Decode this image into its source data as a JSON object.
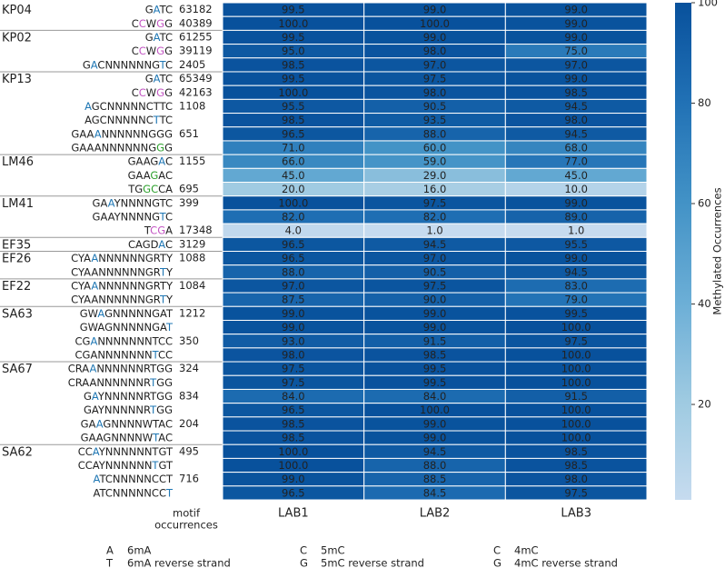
{
  "chart_data": {
    "type": "heatmap",
    "columns": [
      "LAB1",
      "LAB2",
      "LAB3"
    ],
    "occurrences_label": [
      "motif",
      "occurrences"
    ],
    "groups": [
      {
        "name": "KP04",
        "rows": [
          {
            "motif": "GATC",
            "highlight": [
              {
                "pos": 1,
                "color": "#1f77b4"
              }
            ],
            "occurrences": 63182,
            "values": [
              99.5,
              99,
              99
            ],
            "value_labels": [
              "99.5",
              "99.0",
              "99.0"
            ]
          },
          {
            "motif": "CCWGG",
            "highlight": [
              {
                "pos": 1,
                "color": "#c355c3"
              },
              {
                "pos": 3,
                "color": "#c355c3"
              }
            ],
            "occurrences": 40389,
            "values": [
              100,
              100,
              99
            ],
            "value_labels": [
              "100.0",
              "100.0",
              "99.0"
            ]
          }
        ]
      },
      {
        "name": "KP02",
        "rows": [
          {
            "motif": "GATC",
            "highlight": [
              {
                "pos": 1,
                "color": "#1f77b4"
              }
            ],
            "occurrences": 61255,
            "values": [
              99.5,
              99,
              99
            ],
            "value_labels": [
              "99.5",
              "99.0",
              "99.0"
            ]
          },
          {
            "motif": "CCWGG",
            "highlight": [
              {
                "pos": 1,
                "color": "#c355c3"
              },
              {
                "pos": 3,
                "color": "#c355c3"
              }
            ],
            "occurrences": 39119,
            "values": [
              95,
              98,
              75
            ],
            "value_labels": [
              "95.0",
              "98.0",
              "75.0"
            ]
          },
          {
            "motif": "GACNNNNNNGTC",
            "highlight": [
              {
                "pos": 1,
                "color": "#1f77b4"
              },
              {
                "pos": 10,
                "color": "#1f77b4"
              }
            ],
            "occurrences": 2405,
            "values": [
              98.5,
              97,
              97
            ],
            "value_labels": [
              "98.5",
              "97.0",
              "97.0"
            ]
          }
        ]
      },
      {
        "name": "KP13",
        "rows": [
          {
            "motif": "GATC",
            "highlight": [
              {
                "pos": 1,
                "color": "#1f77b4"
              }
            ],
            "occurrences": 65349,
            "values": [
              99.5,
              97.5,
              99
            ],
            "value_labels": [
              "99.5",
              "97.5",
              "99.0"
            ]
          },
          {
            "motif": "CCWGG",
            "highlight": [
              {
                "pos": 1,
                "color": "#c355c3"
              },
              {
                "pos": 3,
                "color": "#c355c3"
              }
            ],
            "occurrences": 42163,
            "values": [
              100,
              98,
              98.5
            ],
            "value_labels": [
              "100.0",
              "98.0",
              "98.5"
            ]
          },
          {
            "motif": "AGCNNNNNCTTC",
            "highlight": [
              {
                "pos": 0,
                "color": "#1f77b4"
              }
            ],
            "occurrences": 1108,
            "values": [
              95.5,
              90.5,
              94.5
            ],
            "value_labels": [
              "95.5",
              "90.5",
              "94.5"
            ]
          },
          {
            "motif": "AGCNNNNNCTTC",
            "highlight": [
              {
                "pos": 9,
                "color": "#1f77b4"
              }
            ],
            "values": [
              98.5,
              93.5,
              98
            ],
            "value_labels": [
              "98.5",
              "93.5",
              "98.0"
            ]
          },
          {
            "motif": "GAAANNNNNNGGG",
            "highlight": [
              {
                "pos": 3,
                "color": "#1f77b4"
              }
            ],
            "occurrences": 651,
            "values": [
              96.5,
              88,
              94.5
            ],
            "value_labels": [
              "96.5",
              "88.0",
              "94.5"
            ]
          },
          {
            "motif": "GAAANNNNNNGGG",
            "highlight": [
              {
                "pos": 11,
                "color": "#2ca02c"
              }
            ],
            "values": [
              71,
              60,
              68
            ],
            "value_labels": [
              "71.0",
              "60.0",
              "68.0"
            ]
          }
        ]
      },
      {
        "name": "LM46",
        "rows": [
          {
            "motif": "GAAGAC",
            "highlight": [
              {
                "pos": 4,
                "color": "#1f77b4"
              }
            ],
            "occurrences": 1155,
            "values": [
              66,
              59,
              77
            ],
            "value_labels": [
              "66.0",
              "59.0",
              "77.0"
            ]
          },
          {
            "motif": "GAAGAC",
            "highlight": [
              {
                "pos": 3,
                "color": "#2ca02c"
              }
            ],
            "values": [
              45,
              29,
              45
            ],
            "value_labels": [
              "45.0",
              "29.0",
              "45.0"
            ]
          },
          {
            "motif": "TGGCCA",
            "highlight": [
              {
                "pos": 2,
                "color": "#2ca02c"
              },
              {
                "pos": 3,
                "color": "#2ca02c"
              }
            ],
            "occurrences": 695,
            "values": [
              20,
              16,
              10
            ],
            "value_labels": [
              "20.0",
              "16.0",
              "10.0"
            ]
          }
        ]
      },
      {
        "name": "LM41",
        "rows": [
          {
            "motif": "GAAYNNNNGTC",
            "highlight": [
              {
                "pos": 2,
                "color": "#1f77b4"
              }
            ],
            "occurrences": 399,
            "values": [
              100,
              97.5,
              99
            ],
            "value_labels": [
              "100.0",
              "97.5",
              "99.0"
            ]
          },
          {
            "motif": "GAAYNNNNGTC",
            "highlight": [
              {
                "pos": 9,
                "color": "#1f77b4"
              }
            ],
            "values": [
              82,
              82,
              89
            ],
            "value_labels": [
              "82.0",
              "82.0",
              "89.0"
            ]
          },
          {
            "motif": "TCGA",
            "highlight": [
              {
                "pos": 1,
                "color": "#c355c3"
              },
              {
                "pos": 2,
                "color": "#c355c3"
              }
            ],
            "occurrences": 17348,
            "values": [
              4,
              1,
              1
            ],
            "value_labels": [
              "4.0",
              "1.0",
              "1.0"
            ]
          }
        ]
      },
      {
        "name": "EF35",
        "rows": [
          {
            "motif": "CAGDAC",
            "highlight": [
              {
                "pos": 4,
                "color": "#1f77b4"
              }
            ],
            "occurrences": 3129,
            "values": [
              96.5,
              94.5,
              95.5
            ],
            "value_labels": [
              "96.5",
              "94.5",
              "95.5"
            ]
          }
        ]
      },
      {
        "name": "EF26",
        "rows": [
          {
            "motif": "CYAANNNNNNGRTY",
            "highlight": [
              {
                "pos": 3,
                "color": "#1f77b4"
              }
            ],
            "occurrences": 1088,
            "values": [
              96.5,
              97,
              99
            ],
            "value_labels": [
              "96.5",
              "97.0",
              "99.0"
            ]
          },
          {
            "motif": "CYAANNNNNNGRTY",
            "highlight": [
              {
                "pos": 12,
                "color": "#1f77b4"
              }
            ],
            "values": [
              88,
              90.5,
              94.5
            ],
            "value_labels": [
              "88.0",
              "90.5",
              "94.5"
            ]
          }
        ]
      },
      {
        "name": "EF22",
        "rows": [
          {
            "motif": "CYAANNNNNNGRTY",
            "highlight": [
              {
                "pos": 3,
                "color": "#1f77b4"
              }
            ],
            "occurrences": 1084,
            "values": [
              97,
              97.5,
              83
            ],
            "value_labels": [
              "97.0",
              "97.5",
              "83.0"
            ]
          },
          {
            "motif": "CYAANNNNNNGRTY",
            "highlight": [
              {
                "pos": 12,
                "color": "#1f77b4"
              }
            ],
            "values": [
              87.5,
              90,
              79
            ],
            "value_labels": [
              "87.5",
              "90.0",
              "79.0"
            ]
          }
        ]
      },
      {
        "name": "SA63",
        "rows": [
          {
            "motif": "GWAGNNNNNGAT",
            "highlight": [
              {
                "pos": 2,
                "color": "#1f77b4"
              }
            ],
            "occurrences": 1212,
            "values": [
              99,
              99,
              99.5
            ],
            "value_labels": [
              "99.0",
              "99.0",
              "99.5"
            ]
          },
          {
            "motif": "GWAGNNNNNGAT",
            "highlight": [
              {
                "pos": 11,
                "color": "#1f77b4"
              }
            ],
            "values": [
              99,
              99,
              100
            ],
            "value_labels": [
              "99.0",
              "99.0",
              "100.0"
            ]
          },
          {
            "motif": "CGANNNNNNNTCC",
            "highlight": [
              {
                "pos": 2,
                "color": "#1f77b4"
              }
            ],
            "occurrences": 350,
            "values": [
              93,
              91.5,
              97.5
            ],
            "value_labels": [
              "93.0",
              "91.5",
              "97.5"
            ]
          },
          {
            "motif": "CGANNNNNNNTCC",
            "highlight": [
              {
                "pos": 10,
                "color": "#1f77b4"
              }
            ],
            "values": [
              98,
              98.5,
              100
            ],
            "value_labels": [
              "98.0",
              "98.5",
              "100.0"
            ]
          }
        ]
      },
      {
        "name": "SA67",
        "rows": [
          {
            "motif": "CRAANNNNNNRTGG",
            "highlight": [
              {
                "pos": 3,
                "color": "#1f77b4"
              }
            ],
            "occurrences": 324,
            "values": [
              97.5,
              99.5,
              100
            ],
            "value_labels": [
              "97.5",
              "99.5",
              "100.0"
            ]
          },
          {
            "motif": "CRAANNNNNNRTGG",
            "highlight": [
              {
                "pos": 11,
                "color": "#1f77b4"
              }
            ],
            "values": [
              97.5,
              99.5,
              100
            ],
            "value_labels": [
              "97.5",
              "99.5",
              "100.0"
            ]
          },
          {
            "motif": "GAYNNNNNRTGG",
            "highlight": [
              {
                "pos": 1,
                "color": "#1f77b4"
              }
            ],
            "occurrences": 834,
            "values": [
              84,
              84,
              91.5
            ],
            "value_labels": [
              "84.0",
              "84.0",
              "91.5"
            ]
          },
          {
            "motif": "GAYNNNNNRTGG",
            "highlight": [
              {
                "pos": 9,
                "color": "#1f77b4"
              }
            ],
            "values": [
              96.5,
              100,
              100
            ],
            "value_labels": [
              "96.5",
              "100.0",
              "100.0"
            ]
          },
          {
            "motif": "GAAGNNNNWTAC",
            "highlight": [
              {
                "pos": 2,
                "color": "#1f77b4"
              }
            ],
            "occurrences": 204,
            "values": [
              98.5,
              99,
              100
            ],
            "value_labels": [
              "98.5",
              "99.0",
              "100.0"
            ]
          },
          {
            "motif": "GAAGNNNNWTAC",
            "highlight": [
              {
                "pos": 9,
                "color": "#1f77b4"
              }
            ],
            "values": [
              98.5,
              99,
              100
            ],
            "value_labels": [
              "98.5",
              "99.0",
              "100.0"
            ]
          }
        ]
      },
      {
        "name": "SA62",
        "rows": [
          {
            "motif": "CCAYNNNNNNTGT",
            "highlight": [
              {
                "pos": 2,
                "color": "#1f77b4"
              }
            ],
            "occurrences": 495,
            "values": [
              100,
              94.5,
              98.5
            ],
            "value_labels": [
              "100.0",
              "94.5",
              "98.5"
            ]
          },
          {
            "motif": "CCAYNNNNNNTGT",
            "highlight": [
              {
                "pos": 10,
                "color": "#1f77b4"
              }
            ],
            "values": [
              100,
              88,
              98.5
            ],
            "value_labels": [
              "100.0",
              "88.0",
              "98.5"
            ]
          },
          {
            "motif": "ATCNNNNNCCT",
            "highlight": [
              {
                "pos": 0,
                "color": "#1f77b4"
              }
            ],
            "occurrences": 716,
            "values": [
              99,
              88.5,
              98
            ],
            "value_labels": [
              "99.0",
              "88.5",
              "98.0"
            ]
          },
          {
            "motif": "ATCNNNNNCCT",
            "highlight": [
              {
                "pos": 10,
                "color": "#1f77b4"
              }
            ],
            "values": [
              96.5,
              84.5,
              97.5
            ],
            "value_labels": [
              "96.5",
              "84.5",
              "97.5"
            ]
          }
        ]
      }
    ],
    "colorbar": {
      "label": "Methylated Occurrences",
      "lim": [
        1,
        100
      ],
      "ticks": [
        20,
        40,
        60,
        80,
        100
      ]
    },
    "legend": [
      {
        "letter": "A",
        "label": "6mA",
        "color": "#1f77b4"
      },
      {
        "letter": "T",
        "label": "6mA reverse strand",
        "color": "#1f77b4"
      },
      {
        "letter": "C",
        "label": "5mC",
        "color": "#c355c3"
      },
      {
        "letter": "G",
        "label": "5mC reverse strand",
        "color": "#c355c3"
      },
      {
        "letter": "C",
        "label": "4mC",
        "color": "#2ca02c"
      },
      {
        "letter": "G",
        "label": "4mC reverse strand",
        "color": "#2ca02c"
      }
    ]
  }
}
